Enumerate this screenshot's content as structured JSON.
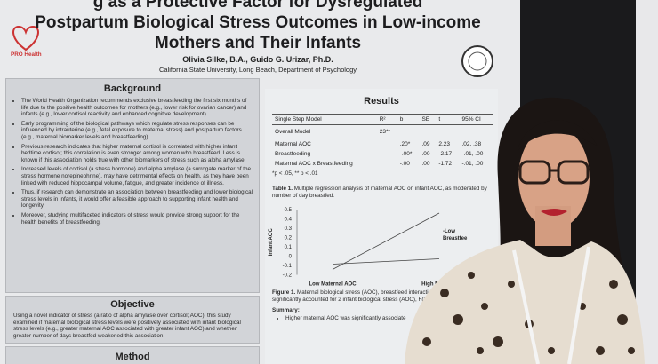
{
  "poster": {
    "logo": "PRO Health",
    "title": [
      "g as a Protective Factor for Dysregulated",
      "Postpartum Biological Stress Outcomes in Low-income",
      "Mothers and Their Infants"
    ],
    "authors": "Olivia Silke, B.A., Guido G. Urizar, Ph.D.",
    "affiliation": "California State University, Long Beach, Department of Psychology",
    "background": {
      "heading": "Background",
      "bullets": [
        "The World Health Organization recommends exclusive breastfeeding the first six months of life due to the positive health outcomes for mothers (e.g., lower risk for ovarian cancer) and infants (e.g., lower cortisol reactivity and enhanced cognitive development).",
        "Early programming of the biological pathways which regulate stress responses can be influenced by intrauterine (e.g., fetal exposure to maternal stress) and postpartum factors (e.g., maternal biomarker levels and breastfeeding).",
        "Previous research indicates that higher maternal cortisol is correlated with higher infant bedtime cortisol; this correlation is even stronger among women who breastfeed. Less is known if this association holds true with other biomarkers of stress such as alpha amylase.",
        "Increased levels of cortisol (a stress hormone) and alpha amylase (a surrogate marker of the stress hormone norepinephrine), may have detrimental effects on health, as they have been linked with reduced hippocampal volume, fatigue, and greater incidence of illness.",
        "Thus, if research can demonstrate an association between breastfeeding and lower biological stress levels in infants, it would offer a feasible approach to supporting infant health and longevity.",
        "Moreover, studying multifaceted indicators of stress would provide strong support for the health benefits of breastfeeding."
      ]
    },
    "objective": {
      "heading": "Objective",
      "text": "Using a novel indicator of stress (a ratio of alpha amylase over cortisol; AOC), this study examined if maternal biological stress levels were positively associated with infant biological stress levels (e.g., greater maternal AOC associated with greater infant AOC) and whether greater number of days breastfed weakened this association."
    },
    "method": {
      "heading": "Method"
    },
    "results": {
      "heading": "Results",
      "table": {
        "header": [
          "Single Step Model",
          "R²",
          "b",
          "SE",
          "t",
          "95% CI"
        ],
        "rows": [
          [
            "Overall Model",
            "23**",
            "",
            "",
            "",
            ""
          ],
          [
            "Maternal AOC",
            "",
            ".20*",
            ".09",
            "2.23",
            ".02, .38"
          ],
          [
            "Breastfeeding",
            "",
            "-.00*",
            ".00",
            "-2.17",
            "-.01, .00"
          ],
          [
            "Maternal AOC x Breastfeeding",
            "",
            "-.00",
            ".00",
            "-1.72",
            "-.01, .00"
          ]
        ],
        "note": "*p < .05, ** p < .01"
      },
      "table_caption_label": "Table 1.",
      "table_caption": "Multiple regression analysis of maternal AOC on infant AOC, as moderated by number of day breastfed.",
      "figure": {
        "ylabel": "Infant AOC",
        "yticks": [
          "0.5",
          "0.4",
          "0.3",
          "0.2",
          "0.1",
          "0",
          "-0.1",
          "-0.2"
        ],
        "xlabels": [
          "Low Maternal AOC",
          "High Maternal"
        ],
        "legend": [
          "-Low",
          "Breastfee"
        ]
      },
      "figure_caption_label": "Figure 1.",
      "figure_caption": "Maternal biological stress (AOC), breastfeed interaction term together, significantly accounted for 2 infant biological stress (AOC), F(3, 53) = 5.20, p = .0",
      "summary_heading": "Summary:",
      "summary_bullets": [
        "Higher maternal AOC was significantly associate"
      ]
    }
  }
}
